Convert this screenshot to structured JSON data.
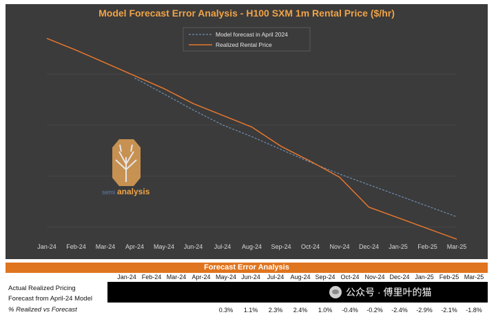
{
  "chart_data": {
    "type": "line",
    "title": "Model Forecast Error Analysis - H100 SXM 1m Rental Price ($/hr)",
    "categories": [
      "Jan-24",
      "Feb-24",
      "Mar-24",
      "Apr-24",
      "May-24",
      "Jun-24",
      "Jul-24",
      "Aug-24",
      "Sep-24",
      "Oct-24",
      "Nov-24",
      "Dec-24",
      "Jan-25",
      "Feb-25",
      "Mar-25"
    ],
    "ylim": [
      0,
      100
    ],
    "grid": true,
    "legend_position": "top-center",
    "series": [
      {
        "name": "Model forecast in April 2024",
        "style": "dashed",
        "color": "#6f8fb5",
        "values": [
          null,
          null,
          null,
          74.5,
          67.0,
          59.5,
          52.5,
          47.0,
          41.0,
          35.0,
          29.5,
          24.5,
          19.5,
          14.5,
          9.5
        ]
      },
      {
        "name": "Realized Rental Price",
        "style": "solid",
        "color": "#e8772e",
        "values": [
          93.0,
          87.5,
          81.5,
          75.5,
          69.5,
          62.5,
          57.0,
          51.5,
          42.5,
          35.5,
          28.0,
          14.0,
          9.0,
          4.0,
          -1.0
        ]
      }
    ]
  },
  "watermark": {
    "text": "analysis",
    "prefix": "semi",
    "icon": "tree-logo-icon"
  },
  "table": {
    "title": "Forecast Error Analysis",
    "months": [
      "Jan-24",
      "Feb-24",
      "Mar-24",
      "Apr-24",
      "May-24",
      "Jun-24",
      "Jul-24",
      "Aug-24",
      "Sep-24",
      "Oct-24",
      "Nov-24",
      "Dec-24",
      "Jan-25",
      "Feb-25",
      "Mar-25"
    ],
    "rows": [
      {
        "label": "Actual Realized Pricing"
      },
      {
        "label": "Forecast from April-24 Model"
      },
      {
        "label": "% Realized vs Forecast",
        "values": [
          "",
          "",
          "",
          "",
          "0.3%",
          "1.1%",
          "2.3%",
          "2.4%",
          "1.0%",
          "-0.4%",
          "-0.2%",
          "-2.4%",
          "-2.9%",
          "-2.1%",
          "-1.8%"
        ]
      }
    ]
  },
  "overlay": {
    "text": "公众号 · 傅里叶的猫",
    "icon": "wechat-icon"
  },
  "colors": {
    "panel": "#3b3b3b",
    "accent": "#e0751f",
    "forecast": "#6f8fb5",
    "realized": "#e8772e"
  }
}
